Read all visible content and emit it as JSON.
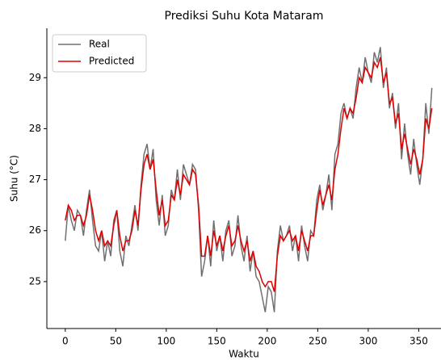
{
  "chart_data": {
    "type": "line",
    "title": "Prediksi Suhu Kota Mataram",
    "x_label": "Waktu",
    "y_label": "Suhu (°C)",
    "x": [
      0,
      3,
      6,
      9,
      12,
      15,
      18,
      21,
      24,
      27,
      30,
      33,
      36,
      39,
      42,
      45,
      48,
      51,
      54,
      57,
      60,
      63,
      66,
      69,
      72,
      75,
      78,
      81,
      84,
      87,
      90,
      93,
      96,
      99,
      102,
      105,
      108,
      111,
      114,
      117,
      120,
      123,
      126,
      129,
      132,
      135,
      138,
      141,
      144,
      147,
      150,
      153,
      156,
      159,
      162,
      165,
      168,
      171,
      174,
      177,
      180,
      183,
      186,
      189,
      192,
      195,
      198,
      201,
      204,
      207,
      210,
      213,
      216,
      219,
      222,
      225,
      228,
      231,
      234,
      237,
      240,
      243,
      246,
      249,
      252,
      255,
      258,
      261,
      264,
      267,
      270,
      273,
      276,
      279,
      282,
      285,
      288,
      291,
      294,
      297,
      300,
      303,
      306,
      309,
      312,
      315,
      318,
      321,
      324,
      327,
      330,
      333,
      336,
      339,
      342,
      345,
      348,
      351,
      354,
      357,
      360,
      363
    ],
    "series": [
      {
        "name": "Real",
        "color": "#707070",
        "values": [
          25.8,
          26.5,
          26.2,
          26.0,
          26.4,
          26.3,
          25.9,
          26.4,
          26.8,
          26.2,
          25.7,
          25.6,
          26.0,
          25.4,
          25.8,
          25.5,
          26.2,
          26.4,
          25.6,
          25.3,
          25.9,
          25.7,
          26.1,
          26.5,
          26.0,
          26.9,
          27.5,
          27.7,
          27.2,
          27.6,
          26.6,
          26.1,
          26.7,
          25.9,
          26.1,
          26.8,
          26.6,
          27.2,
          26.6,
          27.3,
          27.1,
          26.9,
          27.3,
          27.2,
          26.4,
          25.1,
          25.4,
          25.9,
          25.3,
          26.2,
          25.6,
          25.9,
          25.4,
          26.0,
          26.2,
          25.5,
          25.7,
          26.3,
          25.7,
          25.4,
          25.9,
          25.2,
          25.6,
          25.1,
          25.0,
          24.7,
          24.4,
          24.9,
          24.8,
          24.4,
          25.6,
          26.1,
          25.8,
          25.9,
          26.1,
          25.6,
          25.9,
          25.4,
          26.1,
          25.7,
          25.4,
          26.0,
          25.9,
          26.6,
          26.9,
          26.4,
          26.7,
          27.1,
          26.4,
          27.5,
          27.7,
          28.3,
          28.5,
          28.2,
          28.4,
          28.2,
          28.8,
          29.2,
          28.9,
          29.4,
          29.1,
          28.9,
          29.5,
          29.3,
          29.6,
          28.8,
          29.2,
          28.4,
          28.7,
          28.0,
          28.5,
          27.4,
          28.1,
          27.5,
          27.1,
          27.8,
          27.3,
          26.9,
          27.4,
          28.5,
          27.9,
          28.8
        ]
      },
      {
        "name": "Predicted",
        "color": "#e00000",
        "values": [
          26.2,
          26.5,
          26.4,
          26.2,
          26.3,
          26.3,
          26.1,
          26.3,
          26.7,
          26.4,
          26.0,
          25.8,
          26.0,
          25.7,
          25.8,
          25.7,
          26.1,
          26.4,
          25.9,
          25.6,
          25.8,
          25.8,
          26.0,
          26.4,
          26.1,
          26.8,
          27.3,
          27.5,
          27.2,
          27.4,
          26.8,
          26.3,
          26.6,
          26.1,
          26.2,
          26.7,
          26.6,
          27.0,
          26.7,
          27.1,
          27.0,
          26.9,
          27.2,
          27.1,
          26.5,
          25.5,
          25.5,
          25.9,
          25.5,
          26.0,
          25.7,
          25.9,
          25.6,
          25.9,
          26.1,
          25.7,
          25.8,
          26.1,
          25.8,
          25.6,
          25.8,
          25.4,
          25.6,
          25.3,
          25.2,
          25.0,
          24.9,
          25.0,
          25.0,
          24.8,
          25.5,
          25.9,
          25.8,
          25.9,
          26.0,
          25.8,
          25.9,
          25.6,
          26.0,
          25.8,
          25.6,
          25.9,
          25.9,
          26.4,
          26.8,
          26.5,
          26.7,
          26.9,
          26.6,
          27.2,
          27.5,
          28.0,
          28.4,
          28.2,
          28.4,
          28.3,
          28.6,
          29.0,
          28.9,
          29.2,
          29.1,
          29.0,
          29.3,
          29.2,
          29.4,
          28.9,
          29.1,
          28.5,
          28.6,
          28.1,
          28.3,
          27.6,
          27.9,
          27.6,
          27.3,
          27.6,
          27.4,
          27.1,
          27.4,
          28.2,
          28.0,
          28.4
        ]
      }
    ],
    "xlim": [
      -18.25,
      383.25
    ],
    "ylim": [
      24.08,
      29.97
    ],
    "xticks": [
      0,
      50,
      100,
      150,
      200,
      250,
      300,
      350
    ],
    "yticks": [
      25,
      26,
      27,
      28,
      29
    ],
    "legend": "upper left"
  }
}
